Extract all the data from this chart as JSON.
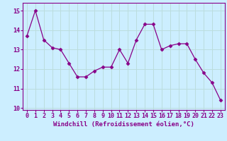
{
  "x": [
    0,
    1,
    2,
    3,
    4,
    5,
    6,
    7,
    8,
    9,
    10,
    11,
    12,
    13,
    14,
    15,
    16,
    17,
    18,
    19,
    20,
    21,
    22,
    23
  ],
  "y": [
    13.7,
    15.0,
    13.5,
    13.1,
    13.0,
    12.3,
    11.6,
    11.6,
    11.9,
    12.1,
    12.1,
    13.0,
    12.3,
    13.5,
    14.3,
    14.3,
    13.0,
    13.2,
    13.3,
    13.3,
    12.5,
    11.8,
    11.3,
    10.4
  ],
  "line_color": "#880088",
  "marker": "D",
  "marker_size": 2.5,
  "bg_color": "#cceeff",
  "grid_color": "#bbdddd",
  "ylim": [
    9.9,
    15.4
  ],
  "xlim": [
    -0.5,
    23.5
  ],
  "yticks": [
    10,
    11,
    12,
    13,
    14,
    15
  ],
  "xtick_labels": [
    "0",
    "1",
    "2",
    "3",
    "4",
    "5",
    "6",
    "7",
    "8",
    "9",
    "10",
    "11",
    "12",
    "13",
    "14",
    "15",
    "16",
    "17",
    "18",
    "19",
    "20",
    "21",
    "22",
    "23"
  ],
  "xlabel": "Windchill (Refroidissement éolien,°C)",
  "xlabel_fontsize": 6.5,
  "tick_fontsize": 6.0,
  "tick_color": "#880088",
  "spine_color": "#880088",
  "grid_linewidth": 0.7
}
